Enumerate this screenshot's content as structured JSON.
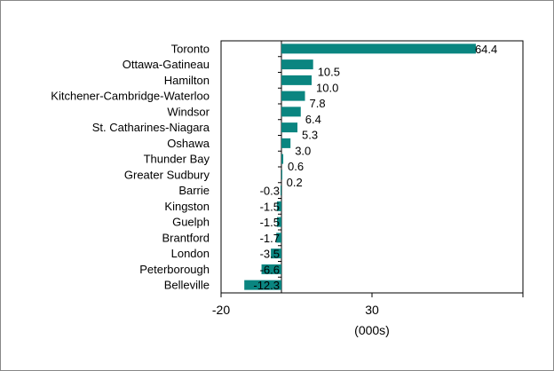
{
  "chart_data": {
    "type": "bar",
    "orientation": "horizontal",
    "categories": [
      "Toronto",
      "Ottawa-Gatineau",
      "Hamilton",
      "Kitchener-Cambridge-Waterloo",
      "Windsor",
      "St. Catharines-Niagara",
      "Oshawa",
      "Thunder Bay",
      "Greater Sudbury",
      "Barrie",
      "Kingston",
      "Guelph",
      "Brantford",
      "London",
      "Peterborough",
      "Belleville"
    ],
    "values": [
      64.4,
      10.5,
      10.0,
      7.8,
      6.4,
      5.3,
      3.0,
      0.6,
      0.2,
      -0.3,
      -1.5,
      -1.5,
      -1.7,
      -3.5,
      -6.6,
      -12.3
    ],
    "value_labels": [
      "64.4",
      "10.5",
      "10.0",
      "7.8",
      "6.4",
      "5.3",
      "3.0",
      "0.6",
      "0.2",
      "-0.3",
      "-1.5",
      "-1.5",
      "-1.7",
      "-3.5",
      "-6.6",
      "-12.3"
    ],
    "xlim": [
      -20,
      80
    ],
    "xticks": [
      -20,
      30,
      80
    ],
    "xtick_labels": [
      "-20",
      "30",
      ""
    ],
    "xlabel": "(000s)",
    "ylabel": "",
    "title": "",
    "grid": false,
    "legend": "none",
    "bar_color": "#0a8580"
  }
}
